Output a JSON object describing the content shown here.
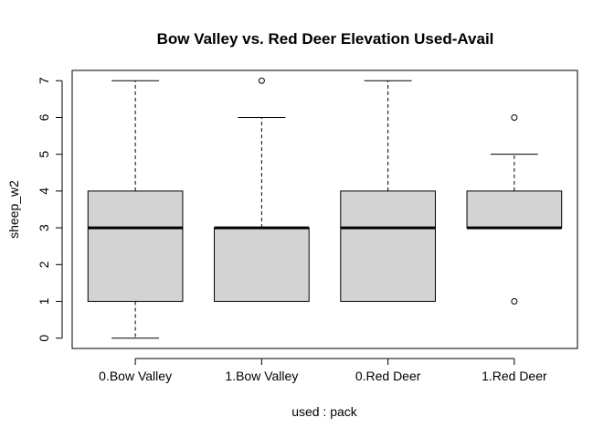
{
  "chart_data": {
    "type": "boxplot",
    "title": "Bow Valley vs. Red Deer Elevation Used-Avail",
    "xlabel": "used : pack",
    "ylabel": "sheep_w2",
    "categories": [
      "0.Bow Valley",
      "1.Bow Valley",
      "0.Red Deer",
      "1.Red Deer"
    ],
    "yticks": [
      0,
      1,
      2,
      3,
      4,
      5,
      6,
      7
    ],
    "ylim": [
      -0.28,
      7.28
    ],
    "grid": false,
    "legend": "none",
    "box_fill": "#d3d3d3",
    "boxes": [
      {
        "name": "0.Bow Valley",
        "whisker_low": 0,
        "q1": 1,
        "median": 3,
        "q3": 4,
        "whisker_high": 7,
        "outliers": []
      },
      {
        "name": "1.Bow Valley",
        "whisker_low": 1,
        "q1": 1,
        "median": 3,
        "q3": 3,
        "whisker_high": 6,
        "outliers": [
          7
        ]
      },
      {
        "name": "0.Red Deer",
        "whisker_low": 1,
        "q1": 1,
        "median": 3,
        "q3": 4,
        "whisker_high": 7,
        "outliers": []
      },
      {
        "name": "1.Red Deer",
        "whisker_low": 3,
        "q1": 3,
        "median": 3,
        "q3": 4,
        "whisker_high": 5,
        "outliers": [
          6,
          1
        ]
      }
    ]
  }
}
